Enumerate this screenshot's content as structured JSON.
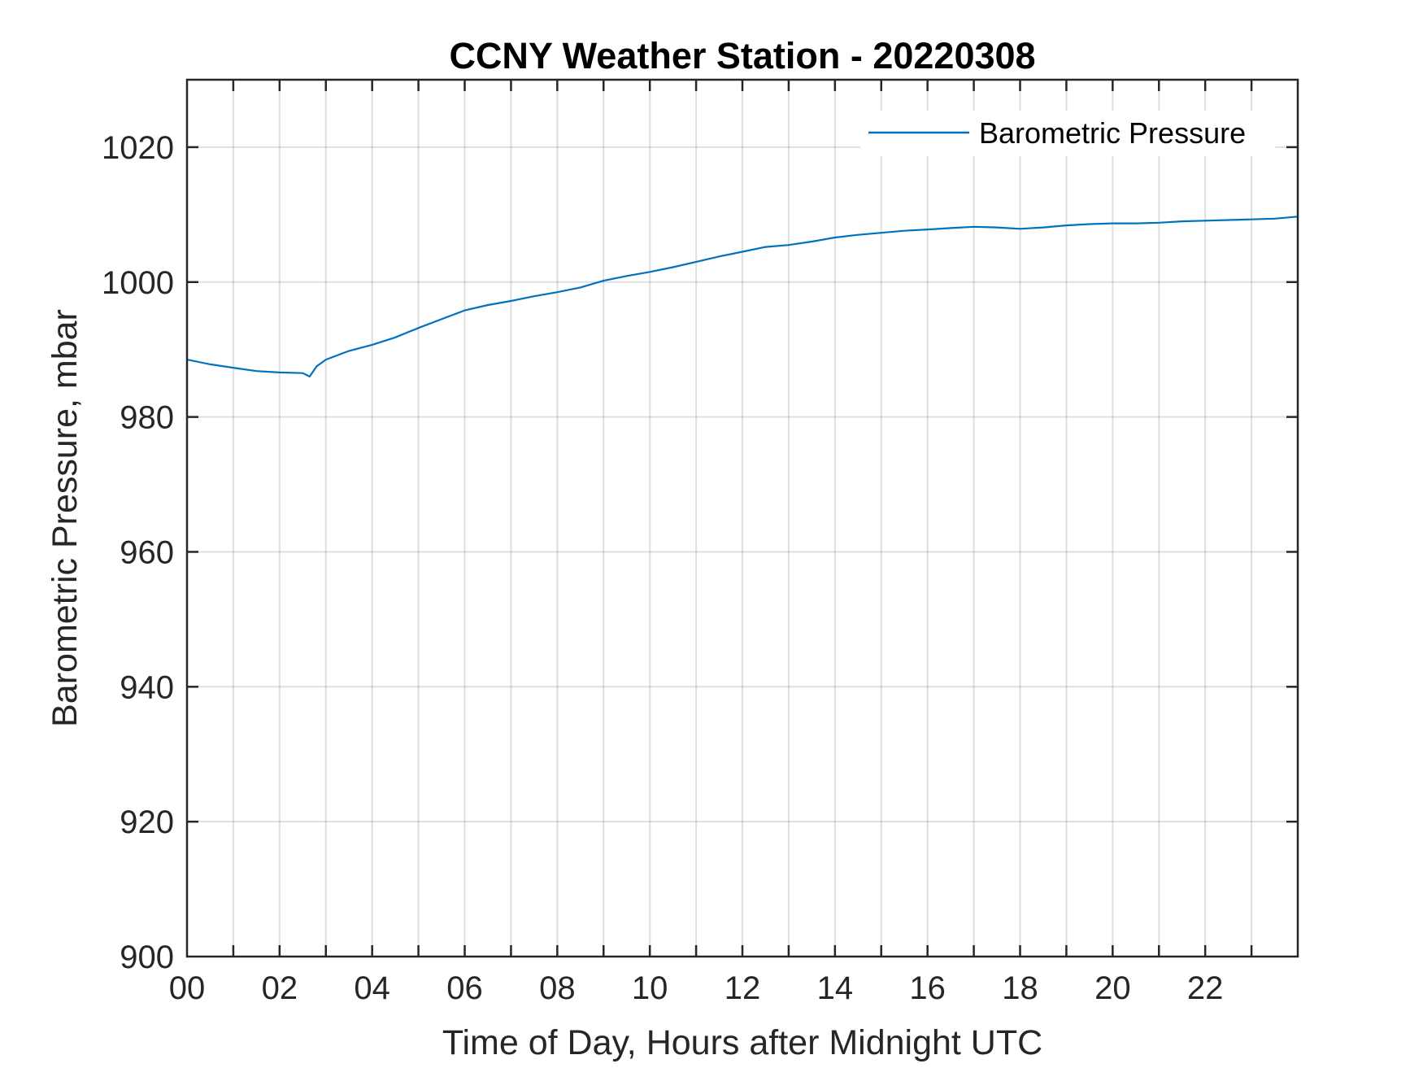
{
  "chart_data": {
    "type": "line",
    "title": "CCNY Weather Station - 20220308",
    "xlabel": "Time of Day, Hours after Midnight UTC",
    "ylabel": "Barometric Pressure, mbar",
    "xlim": [
      0,
      24
    ],
    "ylim": [
      900,
      1030
    ],
    "x_ticks": [
      0,
      2,
      4,
      6,
      8,
      10,
      12,
      14,
      16,
      18,
      20,
      22
    ],
    "x_tick_labels": [
      "00",
      "02",
      "04",
      "06",
      "08",
      "10",
      "12",
      "14",
      "16",
      "18",
      "20",
      "22"
    ],
    "x_grid": [
      0,
      1,
      2,
      3,
      4,
      5,
      6,
      7,
      8,
      9,
      10,
      11,
      12,
      13,
      14,
      15,
      16,
      17,
      18,
      19,
      20,
      21,
      22,
      23
    ],
    "y_ticks": [
      900,
      920,
      940,
      960,
      980,
      1000,
      1020
    ],
    "y_tick_labels": [
      "900",
      "920",
      "940",
      "960",
      "980",
      "1000",
      "1020"
    ],
    "grid": true,
    "legend": {
      "position": "top-right"
    },
    "series": [
      {
        "name": "Barometric Pressure",
        "color": "#0072bd",
        "x": [
          0,
          0.5,
          1,
          1.5,
          2,
          2.5,
          2.65,
          2.8,
          3,
          3.5,
          4,
          4.5,
          5,
          5.5,
          6,
          6.5,
          7,
          7.5,
          8,
          8.5,
          9,
          9.5,
          10,
          10.5,
          11,
          11.5,
          12,
          12.5,
          13,
          13.5,
          14,
          14.5,
          15,
          15.5,
          16,
          16.5,
          17,
          17.5,
          18,
          18.5,
          19,
          19.5,
          20,
          20.5,
          21,
          21.5,
          22,
          22.5,
          23,
          23.5,
          24
        ],
        "y": [
          988.5,
          987.8,
          987.3,
          986.8,
          986.6,
          986.5,
          986.0,
          987.5,
          988.5,
          989.8,
          990.7,
          991.8,
          993.2,
          994.5,
          995.8,
          996.6,
          997.2,
          997.9,
          998.5,
          999.2,
          1000.2,
          1000.9,
          1001.5,
          1002.2,
          1003.0,
          1003.8,
          1004.5,
          1005.2,
          1005.5,
          1006.0,
          1006.6,
          1007.0,
          1007.3,
          1007.6,
          1007.8,
          1008.0,
          1008.2,
          1008.1,
          1007.9,
          1008.1,
          1008.4,
          1008.6,
          1008.7,
          1008.7,
          1008.8,
          1009.0,
          1009.1,
          1009.2,
          1009.3,
          1009.4,
          1009.7
        ]
      }
    ]
  }
}
